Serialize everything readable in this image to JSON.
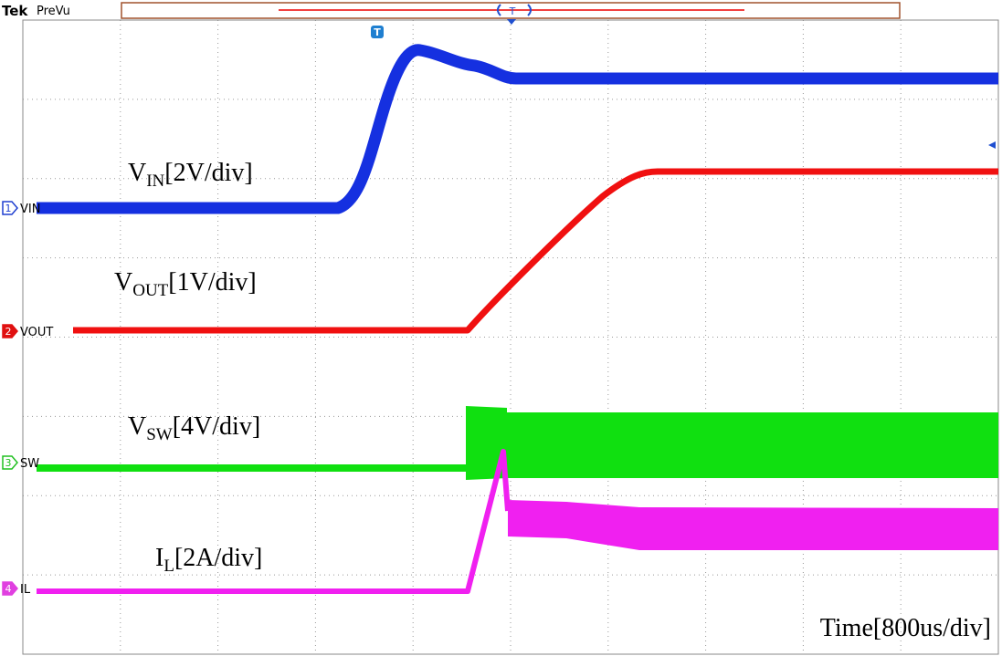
{
  "header": {
    "brand": "Tek",
    "mode": "PreVu",
    "trigger_position": "T"
  },
  "trigger_marker": "T",
  "channels": [
    {
      "number": "1",
      "label": "VIN"
    },
    {
      "number": "2",
      "label": "VOUT"
    },
    {
      "number": "3",
      "label": "SW"
    },
    {
      "number": "4",
      "label": "IL"
    }
  ],
  "annotations": [
    {
      "main": "V",
      "sub": "IN",
      "scale": "[2V/div]"
    },
    {
      "main": "V",
      "sub": "OUT",
      "scale": "[1V/div]"
    },
    {
      "main": "V",
      "sub": "SW",
      "scale": "[4V/div]"
    },
    {
      "main": "I",
      "sub": "L",
      "scale": "[2A/div]"
    }
  ],
  "timebase": "Time[800us/div]"
}
